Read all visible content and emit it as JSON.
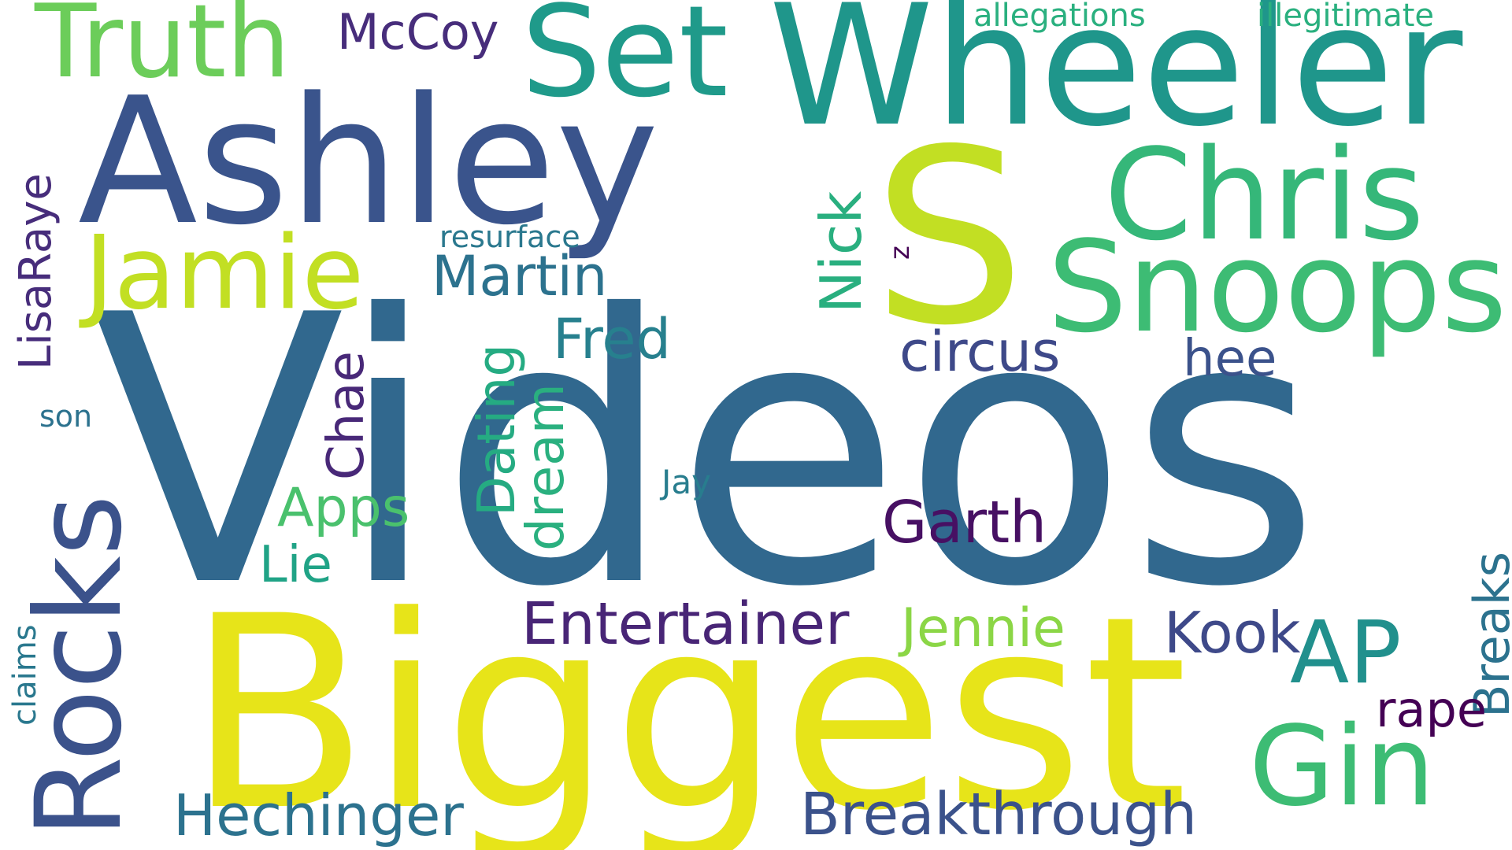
{
  "words": [
    {
      "text": "Videos",
      "color": "#31688e"
    },
    {
      "text": "Biggest",
      "color": "#e7e419"
    },
    {
      "text": "S",
      "color": "#c2df23"
    },
    {
      "text": "Ashley",
      "color": "#3a548c"
    },
    {
      "text": "Wheeler",
      "color": "#1f968b"
    },
    {
      "text": "Chris",
      "color": "#35b779"
    },
    {
      "text": "Snoops",
      "color": "#3dbc74"
    },
    {
      "text": "Set",
      "color": "#1f9a8a"
    },
    {
      "text": "Truth",
      "color": "#6ccd5a"
    },
    {
      "text": "Jamie",
      "color": "#c2df23"
    },
    {
      "text": "Rocks",
      "color": "#3b528b"
    },
    {
      "text": "Gin",
      "color": "#3dbc74"
    },
    {
      "text": "AP",
      "color": "#21908d"
    },
    {
      "text": "Breakthrough",
      "color": "#3b528b"
    },
    {
      "text": "Hechinger",
      "color": "#2c728e"
    },
    {
      "text": "Entertainer",
      "color": "#482576"
    },
    {
      "text": "Jennie",
      "color": "#8bd646"
    },
    {
      "text": "Kook",
      "color": "#3e4989"
    },
    {
      "text": "Breaks",
      "color": "#2c728e"
    },
    {
      "text": "rape",
      "color": "#440154"
    },
    {
      "text": "Garth",
      "color": "#471063"
    },
    {
      "text": "Martin",
      "color": "#2c728e"
    },
    {
      "text": "Fred",
      "color": "#27808e"
    },
    {
      "text": "circus",
      "color": "#3e4989"
    },
    {
      "text": "hee",
      "color": "#3b528b"
    },
    {
      "text": "Nick",
      "color": "#29af7f"
    },
    {
      "text": "Dating",
      "color": "#25ab82"
    },
    {
      "text": "dream",
      "color": "#2ab07f"
    },
    {
      "text": "Chae",
      "color": "#482878"
    },
    {
      "text": "Apps",
      "color": "#4ac16d"
    },
    {
      "text": "Lie",
      "color": "#20a386"
    },
    {
      "text": "LisaRaye",
      "color": "#472d7b"
    },
    {
      "text": "McCoy",
      "color": "#472d7b"
    },
    {
      "text": "allegations",
      "color": "#2ab07f"
    },
    {
      "text": "illegitimate",
      "color": "#2ab07f"
    },
    {
      "text": "resurface",
      "color": "#2a788e"
    },
    {
      "text": "z",
      "color": "#440154"
    },
    {
      "text": "Jay",
      "color": "#287d8e"
    },
    {
      "text": "son",
      "color": "#2c728e"
    },
    {
      "text": "claims",
      "color": "#2a788e"
    }
  ]
}
